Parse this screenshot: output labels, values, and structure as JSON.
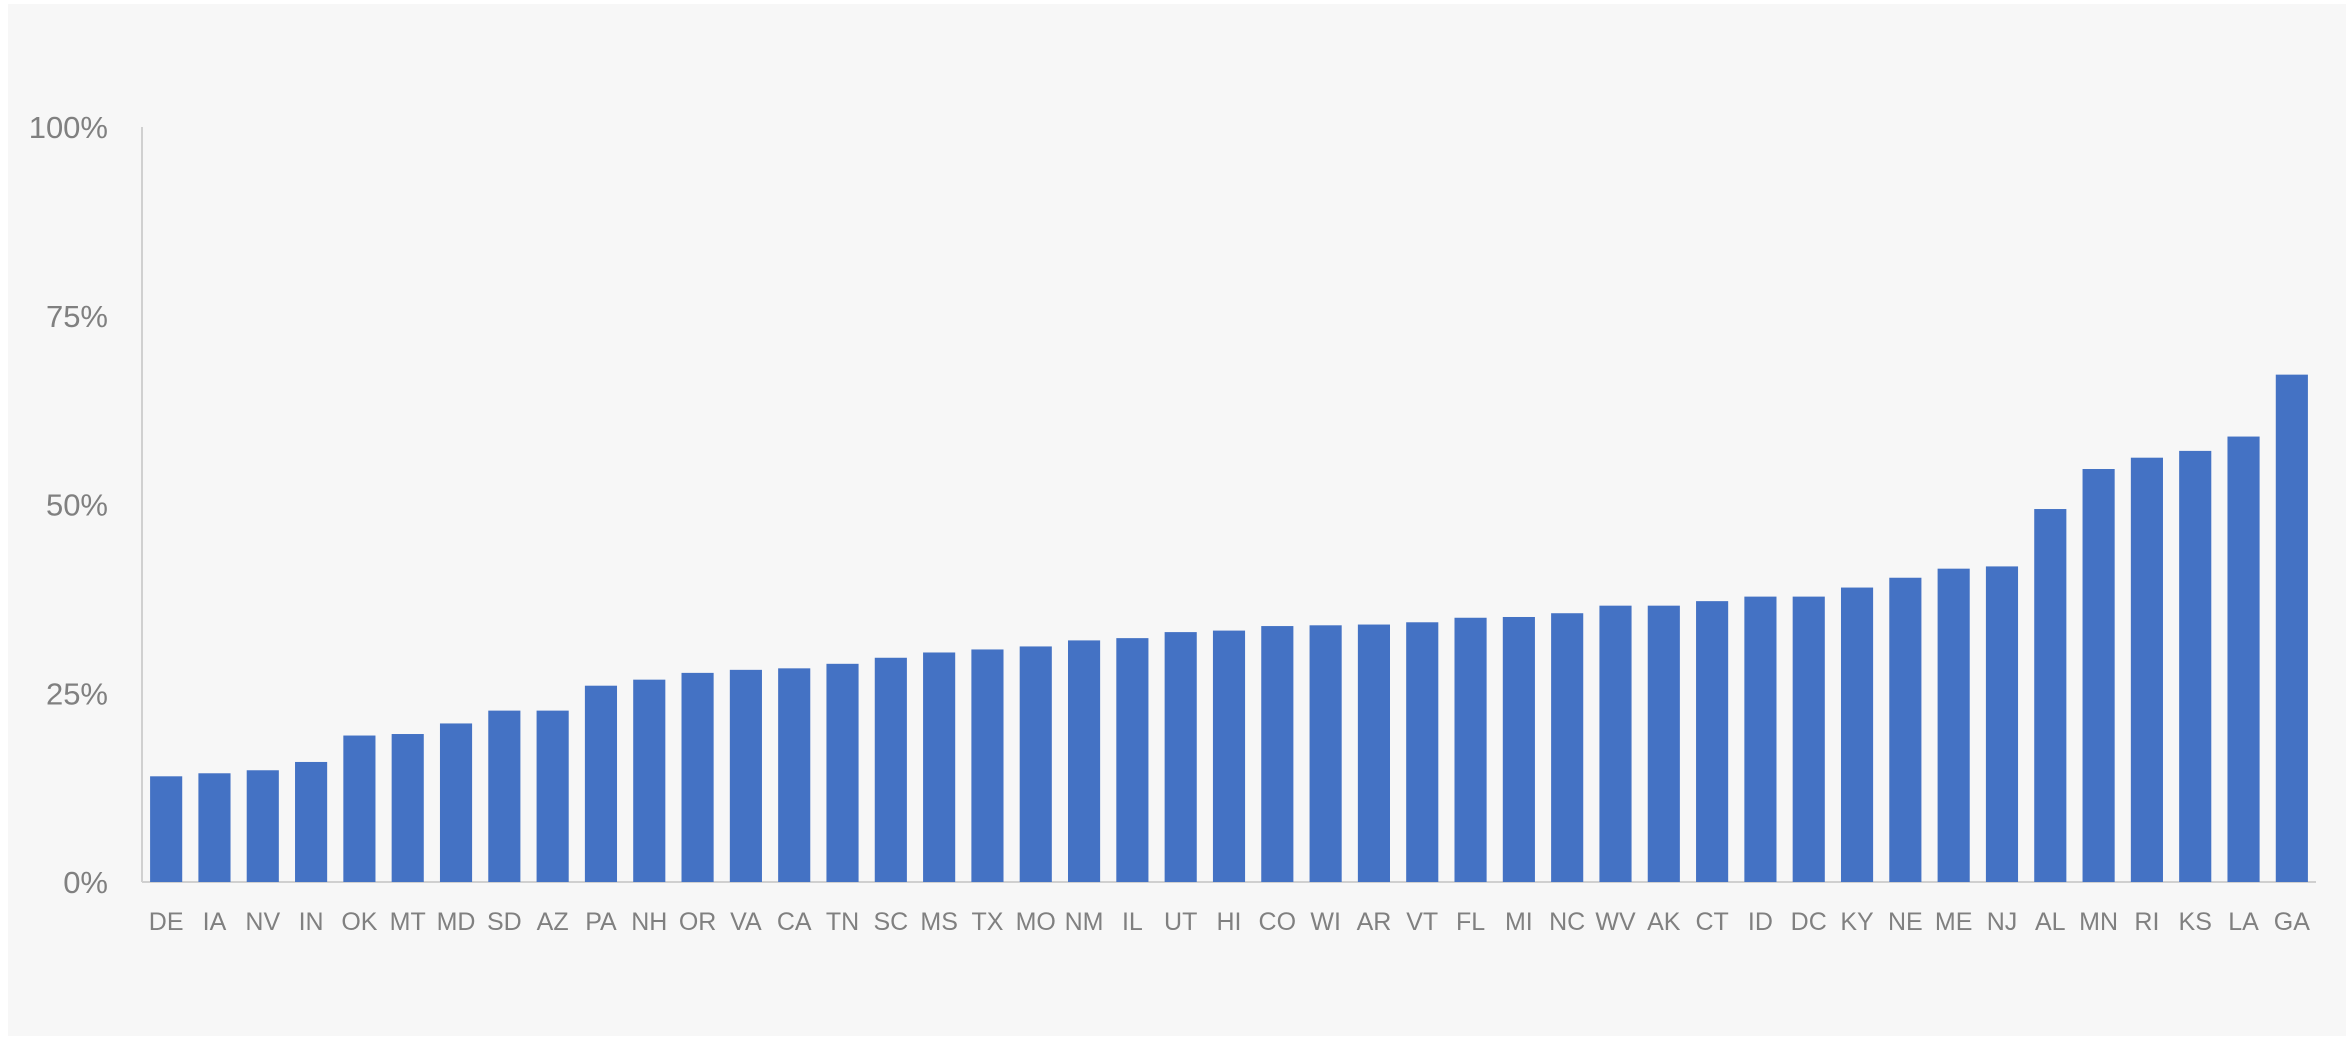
{
  "chart_data": {
    "type": "bar",
    "title": "",
    "xlabel": "",
    "ylabel": "",
    "ylim": [
      0,
      100
    ],
    "y_ticks": [
      "0%",
      "25%",
      "50%",
      "75%",
      "100%"
    ],
    "y_tick_values": [
      0,
      25,
      50,
      75,
      100
    ],
    "grid": false,
    "legend": "none",
    "bar_color": "#4472c4",
    "categories": [
      "DE",
      "IA",
      "NV",
      "IN",
      "OK",
      "MT",
      "MD",
      "SD",
      "AZ",
      "PA",
      "NH",
      "OR",
      "VA",
      "CA",
      "TN",
      "SC",
      "MS",
      "TX",
      "MO",
      "NM",
      "IL",
      "UT",
      "HI",
      "CO",
      "WI",
      "AR",
      "VT",
      "FL",
      "MI",
      "NC",
      "WV",
      "AK",
      "CT",
      "ID",
      "DC",
      "KY",
      "NE",
      "ME",
      "NJ",
      "AL",
      "MN",
      "RI",
      "KS",
      "LA",
      "GA"
    ],
    "values": [
      14,
      14.4,
      14.8,
      15.9,
      19.4,
      19.6,
      21,
      22.7,
      22.7,
      26,
      26.8,
      27.7,
      28.1,
      28.3,
      28.9,
      29.7,
      30.4,
      30.8,
      31.2,
      32,
      32.3,
      33.1,
      33.3,
      33.9,
      34,
      34.1,
      34.4,
      35,
      35.1,
      35.6,
      36.6,
      36.6,
      37.2,
      37.8,
      37.8,
      39,
      40.3,
      41.5,
      41.8,
      49.4,
      54.7,
      56.2,
      57.1,
      59,
      67.2
    ]
  }
}
